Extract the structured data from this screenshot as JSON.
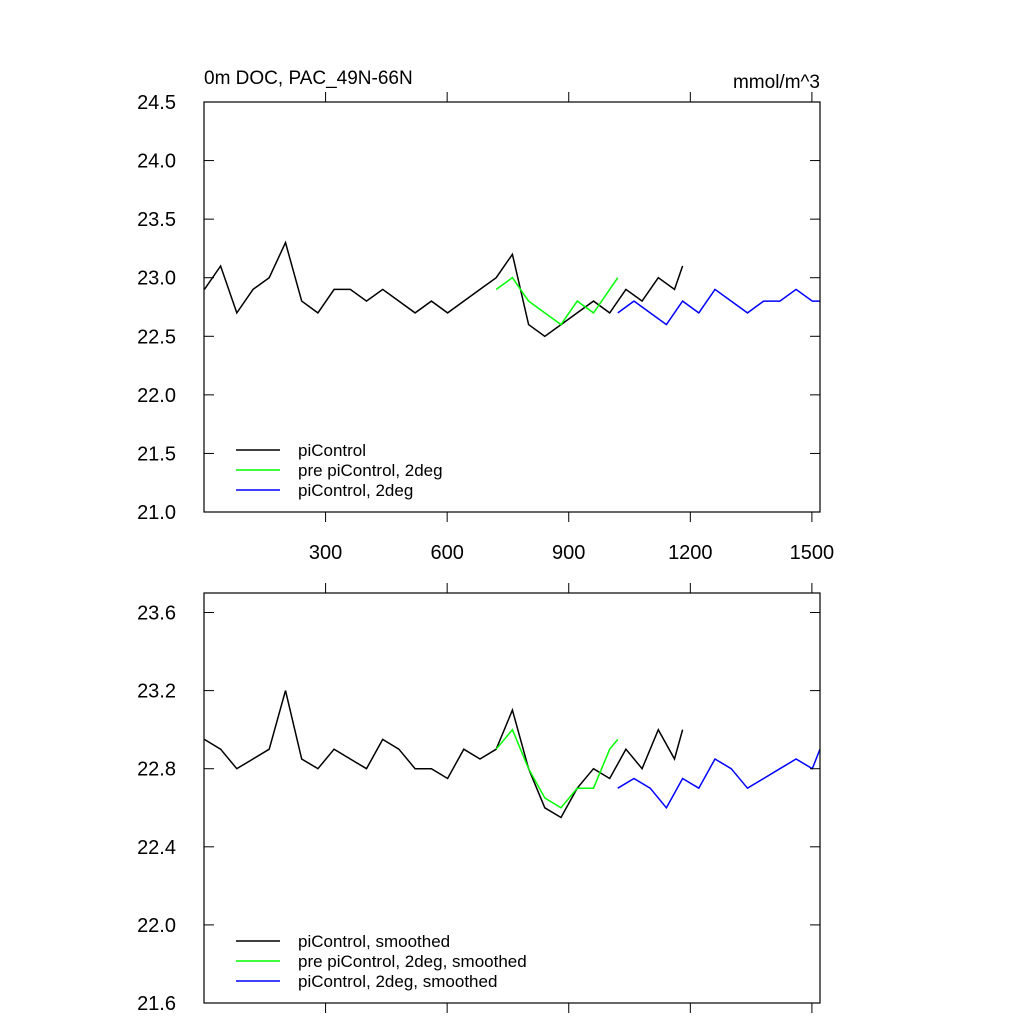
{
  "chart_data": [
    {
      "type": "line",
      "title": "0m DOC, PAC_49N-66N",
      "units": "mmol/m^3",
      "xlabel": "",
      "ylabel": "",
      "xlim": [
        0,
        1520
      ],
      "ylim": [
        21.0,
        24.5
      ],
      "x_ticks": [
        300,
        600,
        900,
        1200,
        1500
      ],
      "y_ticks": [
        21.0,
        21.5,
        22.0,
        22.5,
        23.0,
        23.5,
        24.0,
        24.5
      ],
      "y_tick_labels": [
        "21.0",
        "21.5",
        "22.0",
        "22.5",
        "23.0",
        "23.5",
        "24.0",
        "24.5"
      ],
      "legend_position": "bottom-left",
      "grid": false,
      "series": [
        {
          "name": "piControl",
          "color": "#000000",
          "x": [
            1,
            41,
            81,
            121,
            161,
            201,
            241,
            281,
            321,
            361,
            401,
            441,
            481,
            521,
            561,
            601,
            641,
            681,
            721,
            761,
            801,
            841,
            881,
            921,
            961,
            1001,
            1041,
            1081,
            1121,
            1161,
            1181
          ],
          "y": [
            22.9,
            23.1,
            22.7,
            22.9,
            23.0,
            23.3,
            22.8,
            22.7,
            22.9,
            22.9,
            22.8,
            22.9,
            22.8,
            22.7,
            22.8,
            22.7,
            22.8,
            22.9,
            23.0,
            23.2,
            22.6,
            22.5,
            22.6,
            22.7,
            22.8,
            22.7,
            22.9,
            22.8,
            23.0,
            22.9,
            23.1
          ]
        },
        {
          "name": "pre piControl, 2deg",
          "color": "#00ff00",
          "x": [
            721,
            761,
            801,
            841,
            881,
            921,
            961,
            1001,
            1021
          ],
          "y": [
            22.9,
            23.0,
            22.8,
            22.7,
            22.6,
            22.8,
            22.7,
            22.9,
            23.0
          ]
        },
        {
          "name": "piControl, 2deg",
          "color": "#0000ff",
          "x": [
            1021,
            1061,
            1101,
            1141,
            1181,
            1221,
            1261,
            1301,
            1341,
            1381,
            1421,
            1461,
            1501,
            1520
          ],
          "y": [
            22.7,
            22.8,
            22.7,
            22.6,
            22.8,
            22.7,
            22.9,
            22.8,
            22.7,
            22.8,
            22.8,
            22.9,
            22.8,
            22.8
          ]
        }
      ]
    },
    {
      "type": "line",
      "title": "",
      "xlabel": "",
      "ylabel": "",
      "xlim": [
        0,
        1520
      ],
      "ylim": [
        21.6,
        23.7
      ],
      "x_ticks": [
        300,
        600,
        900,
        1200,
        1500
      ],
      "y_ticks": [
        21.6,
        22.0,
        22.4,
        22.8,
        23.2,
        23.6
      ],
      "y_tick_labels": [
        "21.6",
        "22.0",
        "22.4",
        "22.8",
        "23.2",
        "23.6"
      ],
      "legend_position": "bottom-left",
      "grid": false,
      "series": [
        {
          "name": "piControl, smoothed",
          "color": "#000000",
          "x": [
            1,
            41,
            81,
            121,
            161,
            201,
            241,
            281,
            321,
            361,
            401,
            441,
            481,
            521,
            561,
            601,
            641,
            681,
            721,
            761,
            801,
            841,
            881,
            921,
            961,
            1001,
            1041,
            1081,
            1121,
            1161,
            1181
          ],
          "y": [
            22.95,
            22.9,
            22.8,
            22.85,
            22.9,
            23.2,
            22.85,
            22.8,
            22.9,
            22.85,
            22.8,
            22.95,
            22.9,
            22.8,
            22.8,
            22.75,
            22.9,
            22.85,
            22.9,
            23.1,
            22.8,
            22.6,
            22.55,
            22.7,
            22.8,
            22.75,
            22.9,
            22.8,
            23.0,
            22.85,
            23.0
          ]
        },
        {
          "name": "pre piControl, 2deg, smoothed",
          "color": "#00ff00",
          "x": [
            721,
            761,
            801,
            841,
            881,
            921,
            961,
            1001,
            1021
          ],
          "y": [
            22.9,
            23.0,
            22.8,
            22.65,
            22.6,
            22.7,
            22.7,
            22.9,
            22.95
          ]
        },
        {
          "name": "piControl, 2deg, smoothed",
          "color": "#0000ff",
          "x": [
            1021,
            1061,
            1101,
            1141,
            1181,
            1221,
            1261,
            1301,
            1341,
            1381,
            1421,
            1461,
            1501,
            1520
          ],
          "y": [
            22.7,
            22.75,
            22.7,
            22.6,
            22.75,
            22.7,
            22.85,
            22.8,
            22.7,
            22.75,
            22.8,
            22.85,
            22.8,
            22.9
          ]
        }
      ]
    }
  ]
}
